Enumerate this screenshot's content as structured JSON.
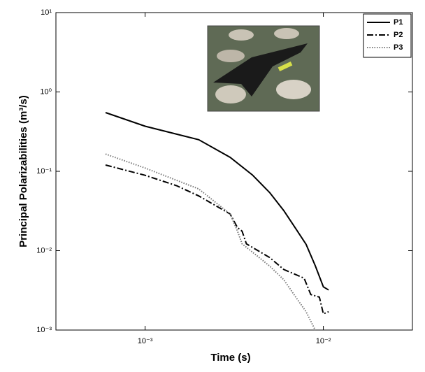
{
  "chart_data": {
    "type": "line",
    "xlabel": "Time (s)",
    "ylabel": "Principal Polarizabilities (m³/s)",
    "xscale": "log",
    "yscale": "log",
    "xlim": [
      0.000316,
      0.0316
    ],
    "ylim": [
      0.001,
      10
    ],
    "xticks": [
      {
        "value": 0.001,
        "label": "10⁻³"
      },
      {
        "value": 0.01,
        "label": "10⁻²"
      }
    ],
    "yticks": [
      {
        "value": 0.001,
        "label": "10⁻³"
      },
      {
        "value": 0.01,
        "label": "10⁻²"
      },
      {
        "value": 0.1,
        "label": "10⁻¹"
      },
      {
        "value": 1,
        "label": "10⁰"
      },
      {
        "value": 10,
        "label": "10¹"
      }
    ],
    "legend": "top-right",
    "series": [
      {
        "name": "P1",
        "color": "#000000",
        "linestyle": "solid",
        "x": [
          0.0006,
          0.001,
          0.002,
          0.003,
          0.004,
          0.005,
          0.006,
          0.007,
          0.008,
          0.009,
          0.01,
          0.0107
        ],
        "values": [
          0.55,
          0.37,
          0.25,
          0.15,
          0.09,
          0.054,
          0.032,
          0.019,
          0.012,
          0.0065,
          0.0035,
          0.0032
        ]
      },
      {
        "name": "P2",
        "color": "#000000",
        "linestyle": "dashdot",
        "x": [
          0.0006,
          0.001,
          0.0015,
          0.002,
          0.003,
          0.0033,
          0.0035,
          0.0037,
          0.004,
          0.005,
          0.006,
          0.007,
          0.0078,
          0.0085,
          0.0095,
          0.01,
          0.0107
        ],
        "values": [
          0.12,
          0.089,
          0.066,
          0.049,
          0.029,
          0.0195,
          0.0176,
          0.0122,
          0.011,
          0.0082,
          0.0058,
          0.005,
          0.0045,
          0.0028,
          0.0026,
          0.0016,
          0.0017
        ]
      },
      {
        "name": "P3",
        "color": "#777777",
        "linestyle": "dotted",
        "x": [
          0.0006,
          0.001,
          0.002,
          0.003,
          0.0033,
          0.0035,
          0.004,
          0.005,
          0.006,
          0.007,
          0.008,
          0.009
        ],
        "values": [
          0.165,
          0.11,
          0.06,
          0.029,
          0.0176,
          0.0122,
          0.0096,
          0.0064,
          0.0043,
          0.0026,
          0.0017,
          0.001
        ]
      }
    ]
  }
}
